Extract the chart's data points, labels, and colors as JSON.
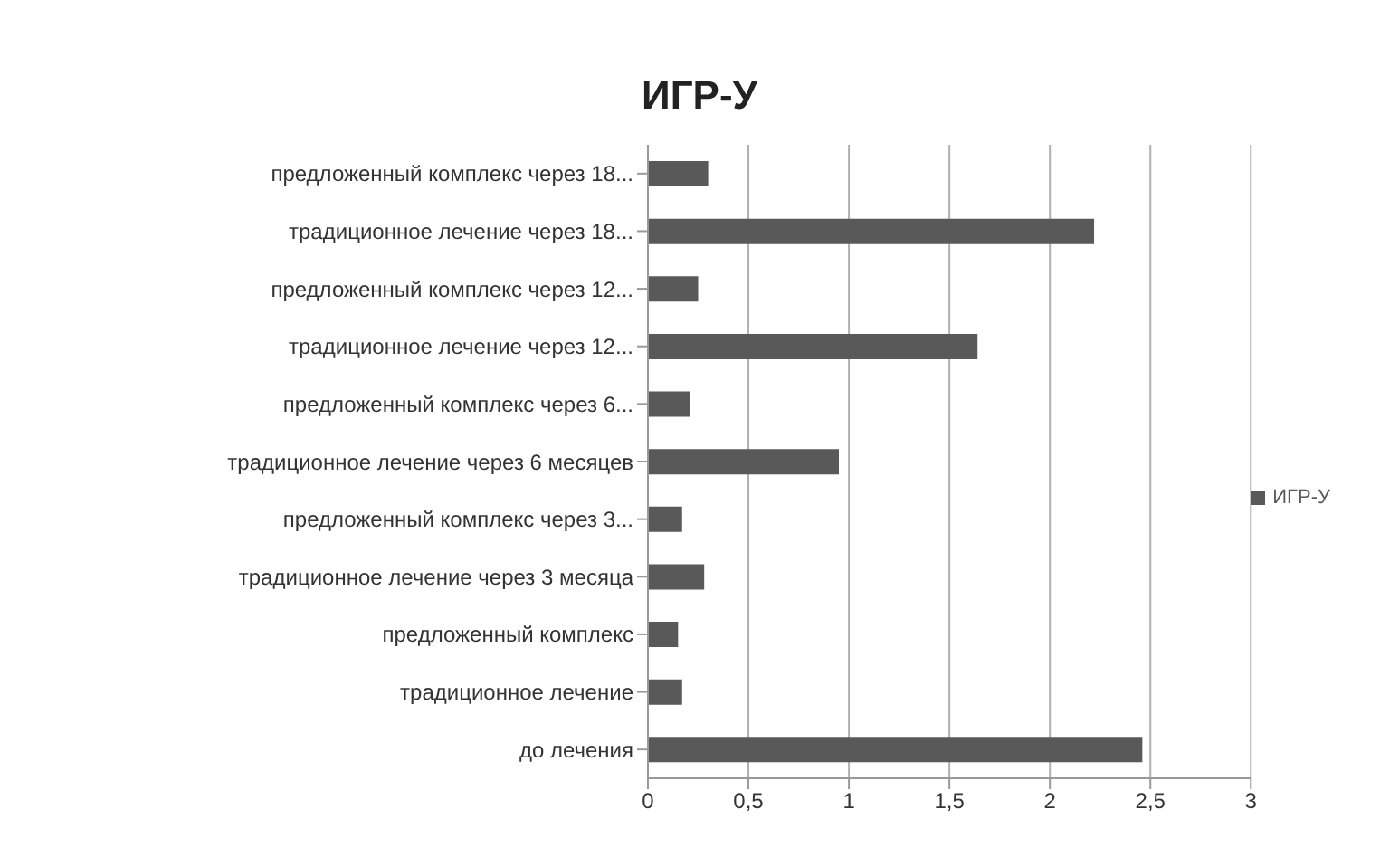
{
  "chart_data": {
    "type": "bar",
    "orientation": "horizontal",
    "title": "ИГР-У",
    "categories": [
      "предложенный комплекс через 18...",
      "традиционное лечение через 18...",
      "предложенный комплекс через 12...",
      "традиционное лечение через 12...",
      "предложенный комплекс через 6...",
      "традиционное лечение через 6 месяцев",
      "предложенный комплекс через 3...",
      "традиционное лечение через 3 месяца",
      "предложенный комплекс",
      "традиционное лечение",
      "до лечения"
    ],
    "series": [
      {
        "name": "ИГР-У",
        "color": "#595959",
        "values": [
          0.3,
          2.22,
          0.25,
          1.64,
          0.21,
          0.95,
          0.17,
          0.28,
          0.15,
          0.17,
          2.46
        ]
      }
    ],
    "xlim": [
      0,
      3
    ],
    "xticks": [
      0,
      {
        "value": 0.5,
        "label": "0,5"
      },
      1,
      {
        "value": 1.5,
        "label": "1,5"
      },
      2,
      {
        "value": 2.5,
        "label": "2,5"
      },
      3
    ],
    "grid": "x",
    "legend": "right"
  }
}
